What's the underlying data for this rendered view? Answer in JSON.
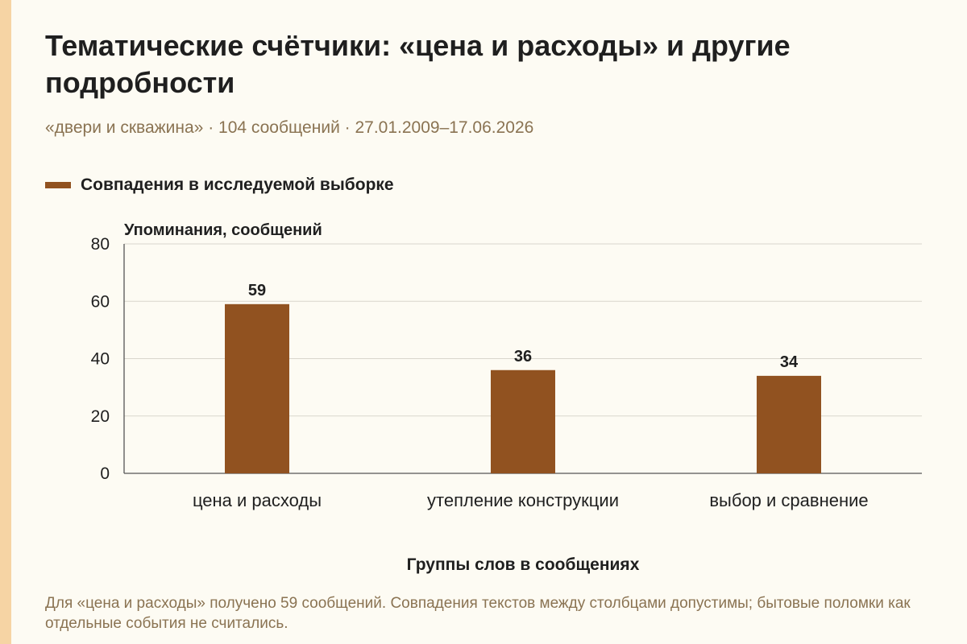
{
  "header": {
    "title": "Тематические счётчики: «цена и расходы» и другие подробности",
    "subtitle": "«двери и скважина» · 104 сообщений · 27.01.2009–17.06.2026"
  },
  "legend": {
    "label": "Совпадения в исследуемой выборке"
  },
  "colors": {
    "bar": "#915220",
    "accent_strip": "#f6d4a4",
    "background": "#fdfbf3"
  },
  "chart_data": {
    "type": "bar",
    "categories": [
      "цена и расходы",
      "утепление конструкции",
      "выбор и сравнение"
    ],
    "series": [
      {
        "name": "Совпадения в исследуемой выборке",
        "values": [
          59,
          36,
          34
        ]
      }
    ],
    "ylabel": "Упоминания, сообщений",
    "xlabel": "Группы слов в сообщениях",
    "ylim": [
      0,
      80
    ],
    "yticks": [
      0,
      20,
      40,
      60,
      80
    ],
    "grid": true,
    "legend_position": "top-left",
    "data_labels": true
  },
  "caption": "Для «цена и расходы» получено 59 сообщений. Совпадения текстов между столбцами допустимы; бытовые поломки как отдельные события не считались."
}
